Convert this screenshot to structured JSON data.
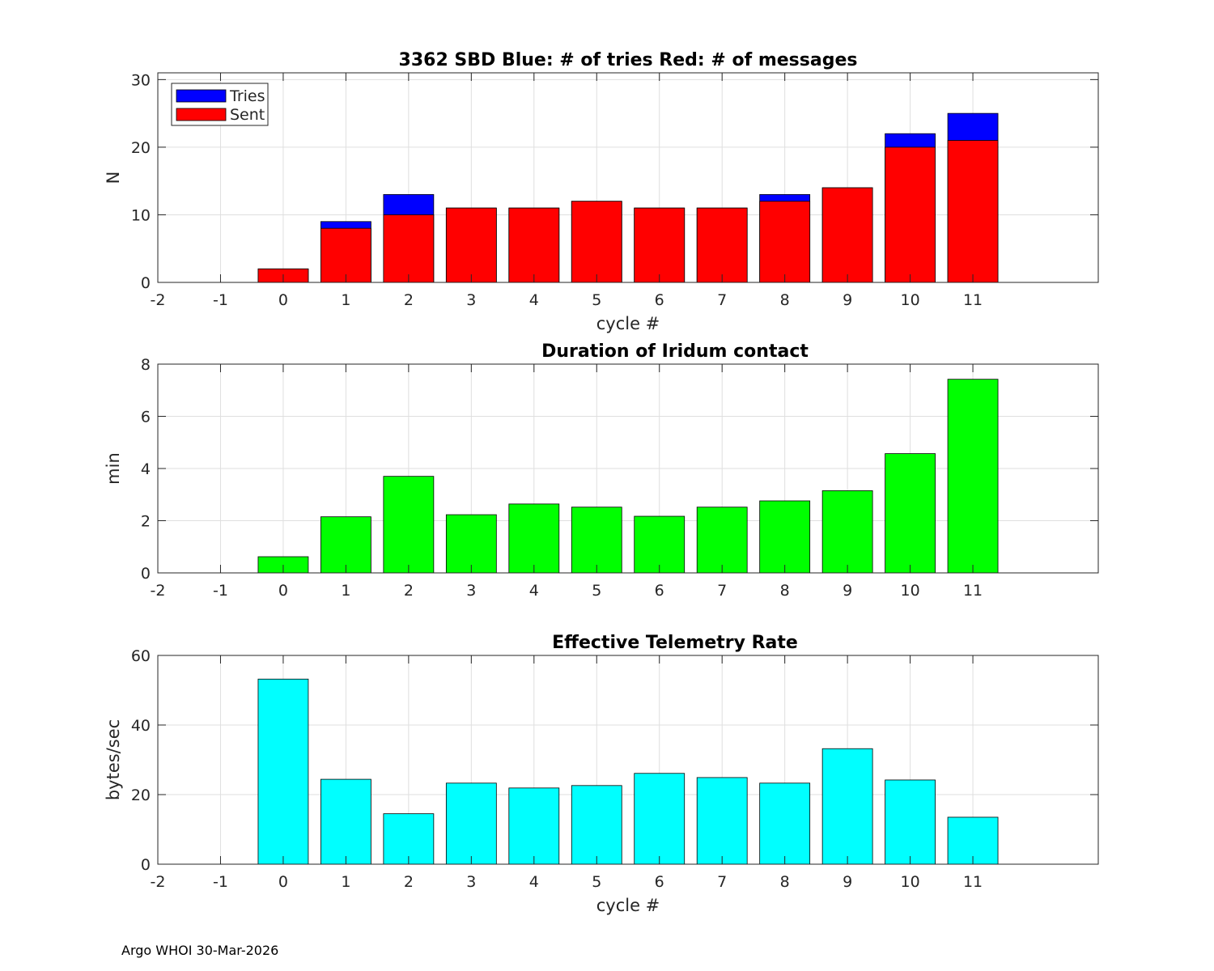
{
  "footer": "Argo WHOI 30-Mar-2026",
  "chart_data": [
    {
      "type": "bar",
      "stacked_overlay": true,
      "title": "3362 SBD  Blue: # of tries   Red: # of messages",
      "xlabel": "cycle #",
      "ylabel": "N",
      "xlim": [
        -2,
        13
      ],
      "ylim": [
        0,
        31
      ],
      "xticks": [
        -2,
        -1,
        0,
        1,
        2,
        3,
        4,
        5,
        6,
        7,
        8,
        9,
        10,
        11
      ],
      "yticks": [
        0,
        10,
        20,
        30
      ],
      "grid": true,
      "legend": {
        "position": "top-left",
        "entries": [
          "Tries",
          "Sent"
        ]
      },
      "x": [
        0,
        1,
        2,
        3,
        4,
        5,
        6,
        7,
        8,
        9,
        10,
        11
      ],
      "series": [
        {
          "name": "Tries",
          "color": "#0000ff",
          "values": [
            2,
            9,
            13,
            11,
            11,
            12,
            11,
            11,
            13,
            14,
            22,
            25
          ]
        },
        {
          "name": "Sent",
          "color": "#ff0000",
          "values": [
            2,
            8,
            10,
            11,
            11,
            12,
            11,
            11,
            12,
            14,
            20,
            21
          ]
        }
      ]
    },
    {
      "type": "bar",
      "title": "Duration of Iridum contact",
      "xlabel": "",
      "ylabel": "min",
      "xlim": [
        -2,
        13
      ],
      "ylim": [
        0,
        8
      ],
      "xticks": [
        -2,
        -1,
        0,
        1,
        2,
        3,
        4,
        5,
        6,
        7,
        8,
        9,
        10,
        11
      ],
      "yticks": [
        0,
        2,
        4,
        6,
        8
      ],
      "grid": true,
      "x": [
        0,
        1,
        2,
        3,
        4,
        5,
        6,
        7,
        8,
        9,
        10,
        11
      ],
      "series": [
        {
          "name": "Duration",
          "color": "#00ff00",
          "values": [
            0.62,
            2.15,
            3.7,
            2.23,
            2.64,
            2.52,
            2.17,
            2.52,
            2.76,
            3.15,
            4.57,
            7.42
          ]
        }
      ]
    },
    {
      "type": "bar",
      "title": "Effective Telemetry Rate",
      "xlabel": "cycle #",
      "ylabel": "bytes/sec",
      "xlim": [
        -2,
        13
      ],
      "ylim": [
        0,
        60
      ],
      "xticks": [
        -2,
        -1,
        0,
        1,
        2,
        3,
        4,
        5,
        6,
        7,
        8,
        9,
        10,
        11
      ],
      "yticks": [
        0,
        20,
        40,
        60
      ],
      "grid": true,
      "x": [
        0,
        1,
        2,
        3,
        4,
        5,
        6,
        7,
        8,
        9,
        10,
        11
      ],
      "series": [
        {
          "name": "Rate",
          "color": "#00ffff",
          "values": [
            53.2,
            24.4,
            14.5,
            23.3,
            21.9,
            22.6,
            26.1,
            24.9,
            23.3,
            33.2,
            24.2,
            13.5
          ]
        }
      ]
    }
  ]
}
